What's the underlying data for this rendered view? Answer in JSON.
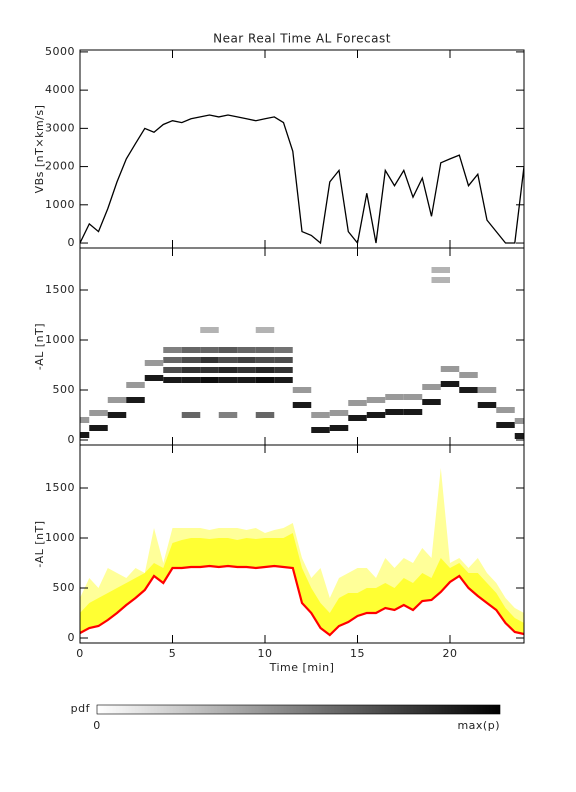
{
  "chart_data": [
    {
      "type": "line",
      "title": "Near Real Time AL Forecast",
      "ylabel": "VBs [nT×km/s]",
      "xlim": [
        0,
        24
      ],
      "xticks": [
        0,
        5,
        10,
        15,
        20
      ],
      "ylim": [
        -130,
        5050
      ],
      "yticks": [
        0,
        1000,
        2000,
        3000,
        4000,
        5000
      ],
      "x": [
        0,
        0.5,
        1,
        1.5,
        2,
        2.5,
        3,
        3.5,
        4,
        4.5,
        5,
        5.5,
        6,
        6.5,
        7,
        7.5,
        8,
        8.5,
        9,
        9.5,
        10,
        10.5,
        11,
        11.5,
        12,
        12.5,
        13,
        13.5,
        14,
        14.5,
        15,
        15.5,
        16,
        16.5,
        17,
        17.5,
        18,
        18.5,
        19,
        19.5,
        20,
        20.5,
        21,
        21.5,
        22,
        22.5,
        23,
        23.5,
        24
      ],
      "series": [
        {
          "color": "#000000",
          "values": [
            0,
            500,
            300,
            900,
            1600,
            2200,
            2600,
            3000,
            2900,
            3100,
            3200,
            3150,
            3250,
            3300,
            3350,
            3300,
            3350,
            3300,
            3250,
            3200,
            3250,
            3300,
            3150,
            2400,
            300,
            200,
            0,
            1600,
            1900,
            300,
            0,
            1300,
            0,
            1900,
            1500,
            1900,
            1200,
            1700,
            700,
            2100,
            2200,
            2300,
            1500,
            1800,
            600,
            300,
            0,
            0,
            2000
          ]
        }
      ]
    },
    {
      "type": "heatmap",
      "ylabel": "-AL [nT]",
      "xlim": [
        0,
        24
      ],
      "xticks": [
        0,
        5,
        10,
        15,
        20
      ],
      "ylim": [
        -50,
        1920
      ],
      "yticks": [
        0,
        500,
        1000,
        1500
      ],
      "cells": [
        [
          5,
          600,
          0.9
        ],
        [
          5,
          700,
          0.7
        ],
        [
          5,
          800,
          0.6
        ],
        [
          5,
          900,
          0.5
        ],
        [
          6,
          600,
          0.9
        ],
        [
          6,
          700,
          0.8
        ],
        [
          6,
          800,
          0.7
        ],
        [
          6,
          900,
          0.6
        ],
        [
          7,
          600,
          0.95
        ],
        [
          7,
          700,
          0.8
        ],
        [
          7,
          800,
          0.8
        ],
        [
          7,
          900,
          0.6
        ],
        [
          8,
          600,
          0.9
        ],
        [
          8,
          700,
          0.85
        ],
        [
          8,
          800,
          0.7
        ],
        [
          8,
          900,
          0.65
        ],
        [
          9,
          600,
          0.9
        ],
        [
          9,
          700,
          0.8
        ],
        [
          9,
          800,
          0.75
        ],
        [
          9,
          900,
          0.6
        ],
        [
          10,
          600,
          0.95
        ],
        [
          10,
          700,
          0.85
        ],
        [
          10,
          800,
          0.7
        ],
        [
          10,
          900,
          0.6
        ],
        [
          11,
          600,
          0.9
        ],
        [
          11,
          700,
          0.8
        ],
        [
          11,
          800,
          0.7
        ],
        [
          11,
          900,
          0.55
        ],
        [
          0,
          50,
          0.9
        ],
        [
          0,
          200,
          0.4
        ],
        [
          1,
          120,
          0.9
        ],
        [
          1,
          270,
          0.4
        ],
        [
          2,
          250,
          0.9
        ],
        [
          2,
          400,
          0.4
        ],
        [
          3,
          400,
          0.9
        ],
        [
          3,
          550,
          0.4
        ],
        [
          4,
          620,
          0.9
        ],
        [
          4,
          770,
          0.4
        ],
        [
          12,
          350,
          0.9
        ],
        [
          12,
          500,
          0.4
        ],
        [
          13,
          100,
          0.9
        ],
        [
          13,
          250,
          0.4
        ],
        [
          14,
          120,
          0.9
        ],
        [
          14,
          270,
          0.4
        ],
        [
          15,
          220,
          0.9
        ],
        [
          15,
          370,
          0.4
        ],
        [
          16,
          250,
          0.9
        ],
        [
          16,
          400,
          0.4
        ],
        [
          17,
          280,
          0.9
        ],
        [
          17,
          430,
          0.4
        ],
        [
          18,
          280,
          0.9
        ],
        [
          18,
          430,
          0.4
        ],
        [
          19,
          380,
          0.9
        ],
        [
          19,
          530,
          0.4
        ],
        [
          20,
          560,
          0.9
        ],
        [
          20,
          710,
          0.4
        ],
        [
          21,
          500,
          0.9
        ],
        [
          21,
          650,
          0.4
        ],
        [
          22,
          350,
          0.9
        ],
        [
          22,
          500,
          0.4
        ],
        [
          23,
          150,
          0.9
        ],
        [
          23,
          300,
          0.4
        ],
        [
          24,
          40,
          0.9
        ],
        [
          24,
          190,
          0.4
        ],
        [
          19.5,
          1700,
          0.3
        ],
        [
          19.5,
          1600,
          0.3
        ],
        [
          7,
          1100,
          0.3
        ],
        [
          10,
          1100,
          0.3
        ],
        [
          6,
          250,
          0.6
        ],
        [
          8,
          250,
          0.5
        ],
        [
          10,
          250,
          0.6
        ]
      ]
    },
    {
      "type": "band",
      "ylabel": "-AL [nT]",
      "xlabel": "Time [min]",
      "xlim": [
        0,
        24
      ],
      "xticks": [
        0,
        5,
        10,
        15,
        20
      ],
      "ylim": [
        -50,
        1930
      ],
      "yticks": [
        0,
        500,
        1000,
        1500
      ],
      "x": [
        0,
        0.5,
        1,
        1.5,
        2,
        2.5,
        3,
        3.5,
        4,
        4.5,
        5,
        5.5,
        6,
        6.5,
        7,
        7.5,
        8,
        8.5,
        9,
        9.5,
        10,
        10.5,
        11,
        11.5,
        12,
        12.5,
        13,
        13.5,
        14,
        14.5,
        15,
        15.5,
        16,
        16.5,
        17,
        17.5,
        18,
        18.5,
        19,
        19.5,
        20,
        20.5,
        21,
        21.5,
        22,
        22.5,
        23,
        23.5,
        24
      ],
      "series": [
        {
          "style": "band",
          "color": "#ffff99",
          "values": [
            400,
            600,
            500,
            700,
            650,
            600,
            700,
            650,
            1100,
            750,
            1100,
            1100,
            1100,
            1100,
            1080,
            1100,
            1100,
            1100,
            1080,
            1100,
            1050,
            1080,
            1100,
            1150,
            800,
            600,
            700,
            400,
            600,
            650,
            700,
            700,
            600,
            800,
            700,
            800,
            750,
            900,
            800,
            1700,
            750,
            800,
            700,
            800,
            650,
            550,
            400,
            300,
            250
          ]
        },
        {
          "style": "band",
          "color": "#ffff33",
          "values": [
            250,
            350,
            400,
            450,
            500,
            550,
            600,
            650,
            750,
            700,
            950,
            980,
            1000,
            1000,
            990,
            1000,
            1000,
            980,
            1000,
            990,
            1000,
            1000,
            1000,
            1050,
            700,
            500,
            350,
            250,
            400,
            450,
            450,
            500,
            500,
            550,
            500,
            600,
            550,
            650,
            600,
            800,
            700,
            750,
            650,
            650,
            550,
            450,
            300,
            200,
            150
          ]
        },
        {
          "style": "line",
          "color": "#ff0000",
          "values": [
            50,
            100,
            120,
            180,
            250,
            330,
            400,
            480,
            620,
            550,
            700,
            700,
            710,
            710,
            720,
            710,
            720,
            710,
            710,
            700,
            710,
            720,
            710,
            700,
            350,
            250,
            100,
            30,
            120,
            160,
            220,
            250,
            250,
            300,
            280,
            330,
            280,
            370,
            380,
            460,
            560,
            620,
            500,
            420,
            350,
            280,
            150,
            60,
            40
          ]
        }
      ]
    }
  ],
  "colorbar": {
    "label": "pdf",
    "min_label": "0",
    "max_label": "max(p)"
  }
}
